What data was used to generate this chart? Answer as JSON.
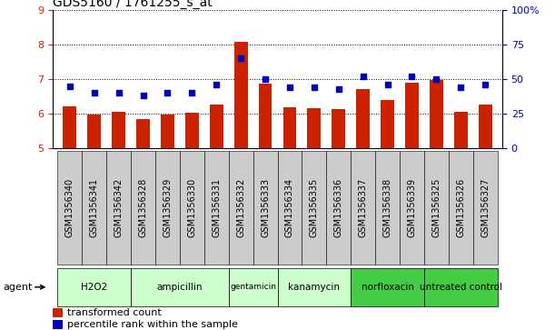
{
  "title": "GDS5160 / 1761255_s_at",
  "samples": [
    "GSM1356340",
    "GSM1356341",
    "GSM1356342",
    "GSM1356328",
    "GSM1356329",
    "GSM1356330",
    "GSM1356331",
    "GSM1356332",
    "GSM1356333",
    "GSM1356334",
    "GSM1356335",
    "GSM1356336",
    "GSM1356337",
    "GSM1356338",
    "GSM1356339",
    "GSM1356325",
    "GSM1356326",
    "GSM1356327"
  ],
  "transformed_count": [
    6.22,
    5.98,
    6.07,
    5.84,
    5.97,
    6.02,
    6.28,
    8.08,
    6.87,
    6.2,
    6.17,
    6.13,
    6.72,
    6.4,
    6.9,
    6.98,
    6.07,
    6.26
  ],
  "percentile_rank": [
    45,
    40,
    40,
    38,
    40,
    40,
    46,
    65,
    50,
    44,
    44,
    43,
    52,
    46,
    52,
    50,
    44,
    46
  ],
  "groups": [
    {
      "label": "H2O2",
      "count": 3,
      "light": true
    },
    {
      "label": "ampicillin",
      "count": 4,
      "light": true
    },
    {
      "label": "gentamicin",
      "count": 2,
      "light": true
    },
    {
      "label": "kanamycin",
      "count": 3,
      "light": true
    },
    {
      "label": "norfloxacin",
      "count": 3,
      "light": false
    },
    {
      "label": "untreated control",
      "count": 3,
      "light": false
    }
  ],
  "ylim_left": [
    5,
    9
  ],
  "yticks_left": [
    5,
    6,
    7,
    8,
    9
  ],
  "ylim_right": [
    0,
    100
  ],
  "yticks_right": [
    0,
    25,
    50,
    75,
    100
  ],
  "bar_color": "#cc2200",
  "dot_color": "#0000bb",
  "bar_width": 0.55,
  "bg_plot": "#ffffff",
  "bg_sample": "#cccccc",
  "color_light": "#ccffcc",
  "color_dark": "#44cc44",
  "grid_color": "#000000",
  "title_fontsize": 10,
  "tick_fontsize": 7,
  "axis_fontsize": 8
}
